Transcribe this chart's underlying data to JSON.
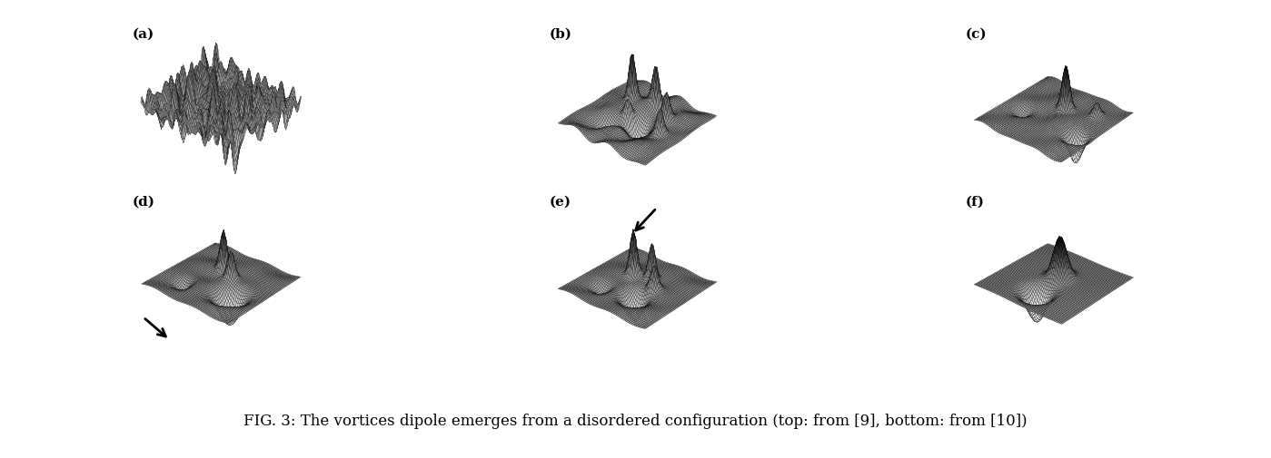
{
  "caption": "FIG. 3: The vortices dipole emerges from a disordered configuration (top: from [9], bottom: from [10])",
  "caption_fontsize": 12,
  "labels": [
    "(a)",
    "(b)",
    "(c)",
    "(d)",
    "(e)",
    "(f)"
  ],
  "background_color": "#ffffff",
  "figure_width": 13.99,
  "figure_height": 5.05,
  "dpi": 100,
  "elev_angles": [
    28,
    32,
    32,
    30,
    30,
    30
  ],
  "azim_angles": [
    -50,
    -50,
    -50,
    -50,
    -50,
    -50
  ]
}
